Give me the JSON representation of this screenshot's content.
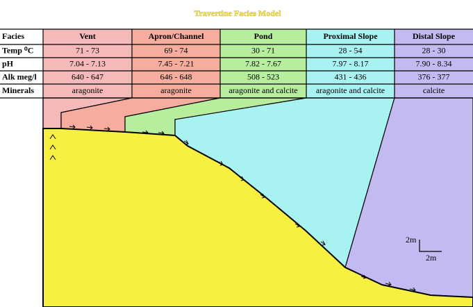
{
  "header": {
    "title": "Travertine Facies Model"
  },
  "table": {
    "columns": [
      "Facies",
      "Vent",
      "Apron/Channel",
      "Pond",
      "Proximal Slope",
      "Distal Slope"
    ],
    "rows": [
      [
        "Temp ⁰C",
        "71 - 73",
        "69 - 74",
        "30 - 71",
        "28 - 54",
        "28 - 30"
      ],
      [
        "pH",
        "7.04 - 7.13",
        "7.45 - 7.21",
        "7.82 - 7.67",
        "7.97 - 8.17",
        "7.90 - 8.34"
      ],
      [
        "Alk meg/l",
        "640 - 647",
        "646 - 648",
        "508 - 523",
        "431 - 436",
        "376 - 377"
      ],
      [
        "Minerals",
        "aragonite",
        "aragonite",
        "aragonite and calcite",
        "aragonite and calcite",
        "calcite"
      ]
    ]
  },
  "scale": {
    "vertical": "2m",
    "horizontal": "2m"
  }
}
